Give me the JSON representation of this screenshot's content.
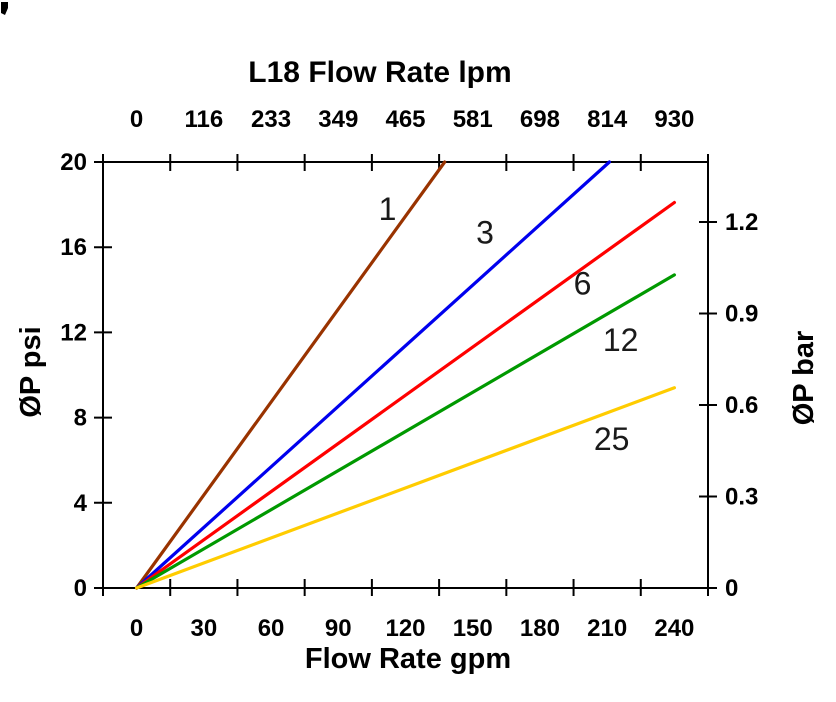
{
  "page": {
    "background": "#ffffff"
  },
  "chart_data": {
    "type": "line",
    "title": "L18 Flow Rate lpm",
    "grid": false,
    "legend": "inline-labels-on-lines",
    "top_axis": {
      "label": "L18 Flow Rate lpm",
      "unit": "lpm",
      "tick_labels": [
        "0",
        "116",
        "233",
        "349",
        "465",
        "581",
        "698",
        "814",
        "930"
      ]
    },
    "bottom_axis": {
      "label": "Flow Rate gpm",
      "unit": "gpm",
      "tick_labels": [
        "0",
        "30",
        "60",
        "90",
        "120",
        "150",
        "180",
        "210",
        "240"
      ],
      "tick_values": [
        0,
        30,
        60,
        90,
        120,
        150,
        180,
        210,
        240
      ],
      "range": [
        0,
        240
      ]
    },
    "left_axis": {
      "label": "ØP psi",
      "unit": "psi",
      "tick_labels": [
        "0",
        "4",
        "8",
        "12",
        "16",
        "20"
      ],
      "tick_values": [
        0,
        4,
        8,
        12,
        16,
        20
      ],
      "range": [
        0,
        20
      ]
    },
    "right_axis": {
      "label": "ØP bar",
      "unit": "bar",
      "tick_labels": [
        "0",
        "0.3",
        "0.6",
        "0.9",
        "1.2"
      ],
      "tick_values": [
        0,
        0.3,
        0.6,
        0.9,
        1.2
      ],
      "range": [
        0,
        1.25
      ]
    },
    "series": [
      {
        "name": "1",
        "color": "#993300",
        "points_gpm_psi": [
          [
            0,
            0
          ],
          [
            137.5,
            20
          ]
        ],
        "label_at_gpm_psi": [
          112,
          17.8
        ]
      },
      {
        "name": "3",
        "color": "#0000EE",
        "points_gpm_psi": [
          [
            0,
            0
          ],
          [
            211,
            20
          ]
        ],
        "label_at_gpm_psi": [
          155.5,
          16.7
        ]
      },
      {
        "name": "6",
        "color": "#FF0000",
        "points_gpm_psi": [
          [
            0,
            0
          ],
          [
            240,
            18.1
          ]
        ],
        "label_at_gpm_psi": [
          199,
          14.3
        ]
      },
      {
        "name": "12",
        "color": "#009900",
        "points_gpm_psi": [
          [
            0,
            0
          ],
          [
            240,
            14.7
          ]
        ],
        "label_at_gpm_psi": [
          216,
          11.65
        ]
      },
      {
        "name": "25",
        "color": "#FFCC00",
        "points_gpm_psi": [
          [
            0,
            0
          ],
          [
            240,
            9.4
          ]
        ],
        "label_at_gpm_psi": [
          212,
          7.0
        ]
      }
    ]
  }
}
